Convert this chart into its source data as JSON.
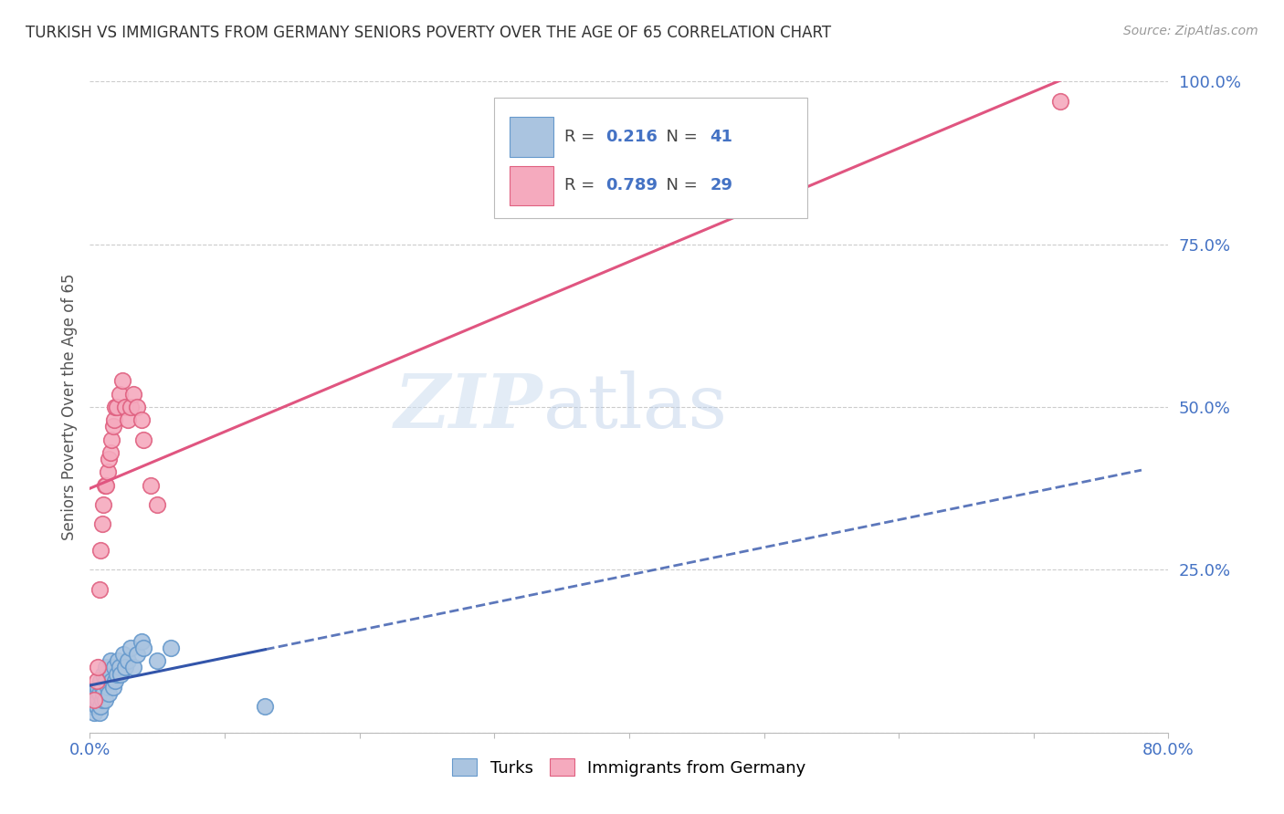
{
  "title": "TURKISH VS IMMIGRANTS FROM GERMANY SENIORS POVERTY OVER THE AGE OF 65 CORRELATION CHART",
  "source": "Source: ZipAtlas.com",
  "ylabel": "Seniors Poverty Over the Age of 65",
  "xlim": [
    0.0,
    0.8
  ],
  "ylim": [
    0.0,
    1.0
  ],
  "yticks": [
    0.0,
    0.25,
    0.5,
    0.75,
    1.0
  ],
  "yticklabels": [
    "",
    "25.0%",
    "50.0%",
    "75.0%",
    "100.0%"
  ],
  "turks_x": [
    0.002,
    0.003,
    0.004,
    0.005,
    0.005,
    0.006,
    0.006,
    0.007,
    0.007,
    0.008,
    0.008,
    0.009,
    0.009,
    0.01,
    0.01,
    0.011,
    0.012,
    0.012,
    0.013,
    0.014,
    0.015,
    0.015,
    0.016,
    0.017,
    0.018,
    0.019,
    0.02,
    0.021,
    0.022,
    0.023,
    0.025,
    0.026,
    0.028,
    0.03,
    0.032,
    0.035,
    0.038,
    0.04,
    0.05,
    0.06,
    0.13
  ],
  "turks_y": [
    0.04,
    0.03,
    0.05,
    0.06,
    0.04,
    0.05,
    0.07,
    0.03,
    0.06,
    0.04,
    0.08,
    0.05,
    0.07,
    0.06,
    0.09,
    0.05,
    0.08,
    0.1,
    0.07,
    0.06,
    0.09,
    0.11,
    0.08,
    0.07,
    0.1,
    0.08,
    0.09,
    0.11,
    0.1,
    0.09,
    0.12,
    0.1,
    0.11,
    0.13,
    0.1,
    0.12,
    0.14,
    0.13,
    0.11,
    0.13,
    0.04
  ],
  "germany_x": [
    0.003,
    0.005,
    0.006,
    0.007,
    0.008,
    0.009,
    0.01,
    0.011,
    0.012,
    0.013,
    0.014,
    0.015,
    0.016,
    0.017,
    0.018,
    0.019,
    0.02,
    0.022,
    0.024,
    0.026,
    0.028,
    0.03,
    0.032,
    0.035,
    0.038,
    0.04,
    0.045,
    0.05,
    0.72
  ],
  "germany_y": [
    0.05,
    0.08,
    0.1,
    0.22,
    0.28,
    0.32,
    0.35,
    0.38,
    0.38,
    0.4,
    0.42,
    0.43,
    0.45,
    0.47,
    0.48,
    0.5,
    0.5,
    0.52,
    0.54,
    0.5,
    0.48,
    0.5,
    0.52,
    0.5,
    0.48,
    0.45,
    0.38,
    0.35,
    0.97
  ],
  "turks_color": "#aac4e0",
  "germany_color": "#f5aabe",
  "turks_edge_color": "#6699cc",
  "germany_edge_color": "#e06080",
  "turks_line_color": "#3355aa",
  "germany_line_color": "#e05580",
  "turks_R": 0.216,
  "turks_N": 41,
  "germany_R": 0.789,
  "germany_N": 29,
  "legend_labels": [
    "Turks",
    "Immigrants from Germany"
  ],
  "watermark_zip": "ZIP",
  "watermark_atlas": "atlas",
  "background_color": "#ffffff"
}
